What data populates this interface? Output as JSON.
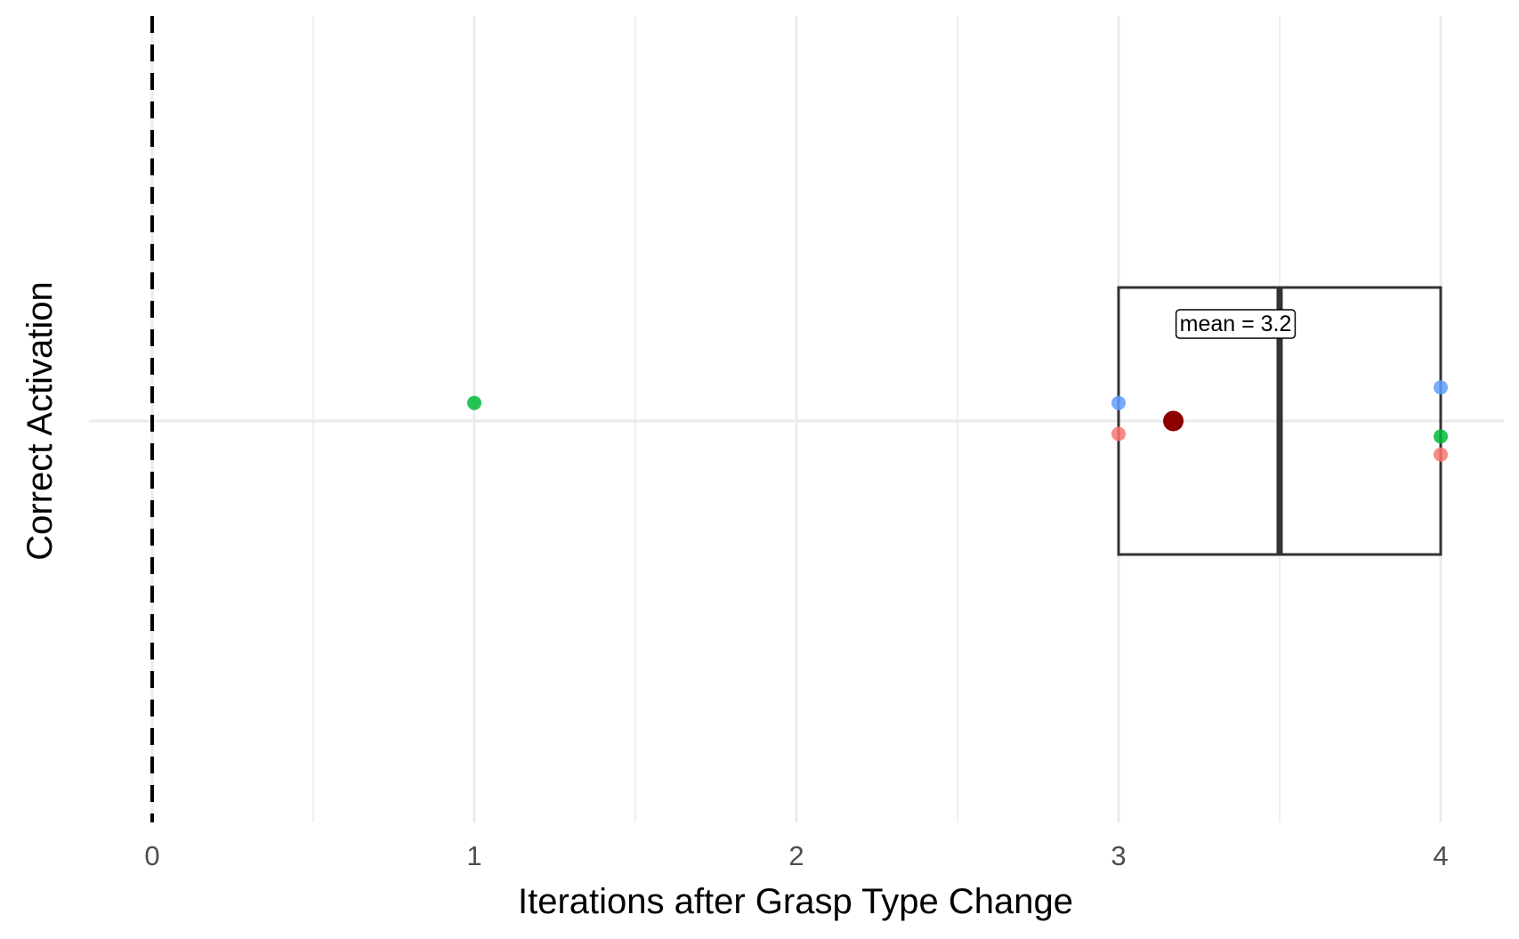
{
  "chart_data": {
    "type": "scatter",
    "xlabel": "Iterations after Grasp Type Change",
    "ylabel": "Correct Activation",
    "xlim": [
      -0.2,
      4.2
    ],
    "x_ticks": [
      0,
      1,
      2,
      3,
      4
    ],
    "x_tick_labels": [
      "0",
      "1",
      "2",
      "3",
      "4"
    ],
    "x_minor_grid": [
      0.5,
      1.5,
      2.5,
      3.5
    ],
    "grid": true,
    "reference_line": {
      "x": 0,
      "style": "dashed",
      "color": "#000000"
    },
    "boxplot": {
      "q1": 3,
      "median": 3.5,
      "q3": 4,
      "whisker_low": 3,
      "whisker_high": 4
    },
    "points": [
      {
        "x": 1,
        "color": "#00BA38",
        "jitter": 0.07
      },
      {
        "x": 3,
        "color": "#619CFF",
        "jitter": 0.07
      },
      {
        "x": 3,
        "color": "#F8766D",
        "jitter": -0.05
      },
      {
        "x": 4,
        "color": "#619CFF",
        "jitter": 0.13
      },
      {
        "x": 4,
        "color": "#00BA38",
        "jitter": -0.06
      },
      {
        "x": 4,
        "color": "#F8766D",
        "jitter": -0.13
      }
    ],
    "mean": {
      "value": 3.17,
      "color": "#8B0000"
    },
    "annotation": {
      "text": "mean = 3.2",
      "x": 3.17
    }
  }
}
